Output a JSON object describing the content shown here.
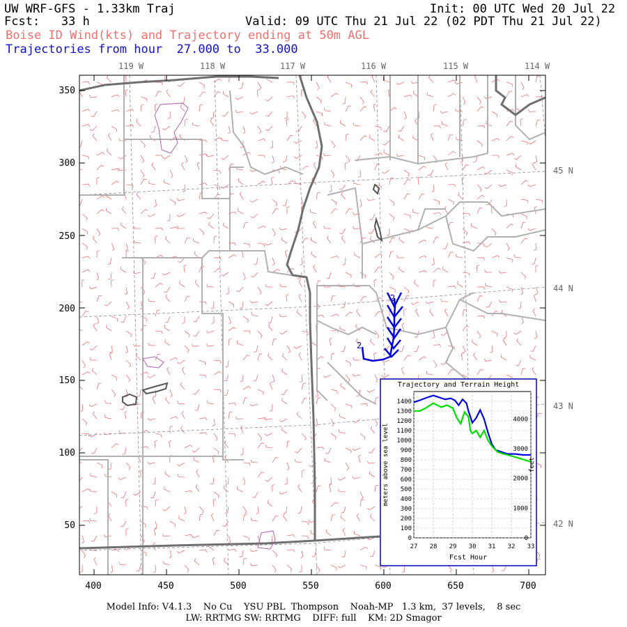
{
  "header": {
    "model": "UW WRF-GFS - 1.33km Traj",
    "init": "Init: 00 UTC Wed 20 Jul 22",
    "fcst": "Fcst:   33 h",
    "valid": "Valid: 09 UTC Thu 21 Jul 22 (02 PDT Thu 21 Jul 22)",
    "subtitle": "Boise ID Wind(kts) and Trajectory ending at 50m AGL",
    "traj_range": "Trajectories from hour  27.000 to  33.000"
  },
  "map": {
    "lon_labels": [
      "119 W",
      "118 W",
      "117 W",
      "116 W",
      "115 W",
      "114 W"
    ],
    "lat_labels": [
      "45 N",
      "44 N",
      "43 N",
      "42 N"
    ],
    "x_ticks": [
      "400",
      "450",
      "500",
      "550",
      "600",
      "650",
      "700"
    ],
    "y_ticks": [
      "350",
      "300",
      "250",
      "200",
      "150",
      "100",
      "50"
    ],
    "trajectory_markers": [
      "2",
      "2"
    ],
    "colors": {
      "barbs": "#f07070",
      "trajectory": "#0000e0",
      "terrain": "#00dd00",
      "borders": "#b0b0b0",
      "state_lines": "#707070",
      "lakes": "#b060b0"
    }
  },
  "inset": {
    "title": "Trajectory and Terrain Height",
    "left_axis_label": "meters above sea level",
    "right_axis_label": "feet",
    "x_axis_label": "Fcst Hour",
    "left_ticks": [
      "1400",
      "1300",
      "1200",
      "1100",
      "1000",
      "900",
      "800",
      "700",
      "600",
      "500",
      "400",
      "300",
      "200",
      "100",
      "0"
    ],
    "right_ticks": [
      "4000",
      "3000",
      "2000",
      "1000",
      "0"
    ],
    "x_ticks": [
      "27",
      "28",
      "29",
      "30",
      "31",
      "32",
      "33"
    ]
  },
  "chart_data": {
    "type": "line",
    "title": "Trajectory and Terrain Height",
    "xlabel": "Fcst Hour",
    "ylabel": "meters above sea level",
    "ylim": [
      0,
      1500
    ],
    "xlim": [
      27,
      33
    ],
    "grid": true,
    "series": [
      {
        "color": "#0000e0",
        "x": [
          27.0,
          27.3,
          27.7,
          28.0,
          28.3,
          28.6,
          28.9,
          29.1,
          29.3,
          29.5,
          29.7,
          29.8,
          30.0,
          30.2,
          30.4,
          30.6,
          30.8,
          31.0,
          31.2,
          31.5,
          31.8,
          32.2,
          32.6,
          33.0
        ],
        "y": [
          1390,
          1410,
          1440,
          1460,
          1440,
          1420,
          1430,
          1410,
          1360,
          1420,
          1380,
          1300,
          1180,
          1230,
          1310,
          1220,
          1080,
          960,
          900,
          880,
          860,
          860,
          850,
          850
        ]
      },
      {
        "color": "#00dd00",
        "x": [
          27.0,
          27.3,
          27.6,
          28.0,
          28.4,
          28.7,
          29.0,
          29.2,
          29.4,
          29.6,
          29.8,
          29.9,
          30.0,
          30.2,
          30.4,
          30.6,
          30.8,
          31.0,
          31.3,
          31.6,
          32.0,
          32.5,
          33.0
        ],
        "y": [
          1300,
          1300,
          1330,
          1380,
          1340,
          1360,
          1330,
          1230,
          1170,
          1290,
          1240,
          1100,
          1070,
          1100,
          1030,
          1100,
          1000,
          940,
          880,
          860,
          840,
          810,
          780
        ]
      }
    ]
  },
  "footer": {
    "line1": "Model Info: V4.1.3    No Cu    YSU PBL  Thompson    Noah-MP   1.3 km,  37 levels,    8 sec",
    "line2": "LW: RRTMG SW: RRTMG    DIFF: full    KM: 2D Smagor"
  }
}
